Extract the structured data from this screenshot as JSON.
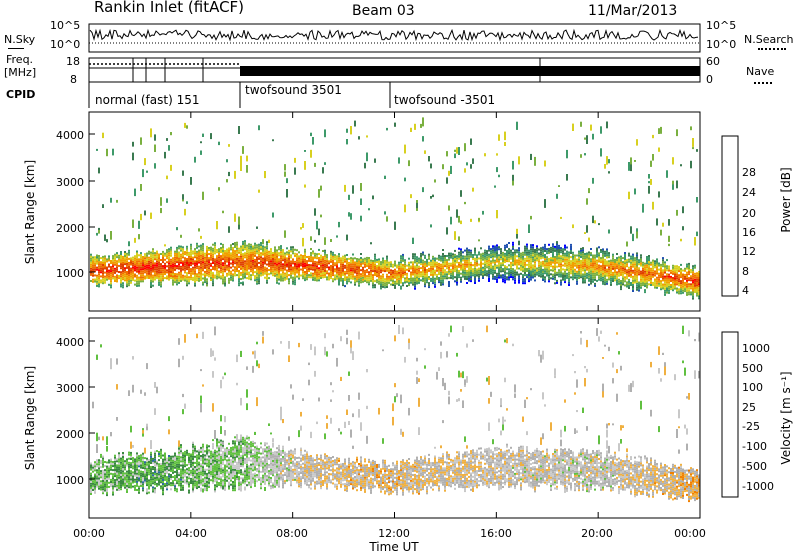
{
  "header": {
    "station": "Rankin Inlet (fitACF)",
    "beam": "Beam 03",
    "date": "11/Mar/2013"
  },
  "noise_panel": {
    "left_label": "N.Sky",
    "right_label": "N.Search",
    "left_ticks": [
      "10^5",
      "10^0"
    ],
    "right_ticks": [
      "10^5",
      "10^0"
    ]
  },
  "freq_panel": {
    "left_label_line1": "Freq.",
    "left_label_line2": "[MHz]",
    "right_label": "Nave",
    "left_ticks": [
      "18",
      "8"
    ],
    "right_ticks": [
      "60",
      "0"
    ]
  },
  "cpid_panel": {
    "label": "CPID",
    "modes": [
      "normal (fast) 151",
      "twofsound 3501",
      "twofsound -3501"
    ]
  },
  "x_axis": {
    "label": "Time UT",
    "ticks": [
      "00:00",
      "04:00",
      "08:00",
      "12:00",
      "16:00",
      "20:00",
      "00:00"
    ]
  },
  "power_panel": {
    "ylabel": "Slant Range [km]",
    "yticks": [
      "4000",
      "3000",
      "2000",
      "1000"
    ],
    "cbar_label": "Power [dB]",
    "cbar_ticks": [
      "28",
      "24",
      "20",
      "16",
      "12",
      "8",
      "4"
    ]
  },
  "velocity_panel": {
    "ylabel": "Slant Range [km]",
    "yticks": [
      "4000",
      "3000",
      "2000",
      "1000"
    ],
    "cbar_label": "Velocity [m s⁻¹]",
    "cbar_ticks": [
      "1000",
      "500",
      "100",
      "25",
      "-25",
      "-100",
      "-500",
      "-1000"
    ]
  },
  "colors": {
    "power_scale": [
      "#0000ff",
      "#2050b0",
      "#3a7a50",
      "#3e9a6a",
      "#7ab040",
      "#d8d020",
      "#f0a000",
      "#f07000",
      "#e04000",
      "#ff0000"
    ],
    "velocity_scale": [
      "#ff0000",
      "#e85000",
      "#f08000",
      "#f0b040",
      "#b0b0b0",
      "#c8c8c8",
      "#60c040",
      "#3a8a40",
      "#2c6aa0",
      "#1f3fbf"
    ]
  },
  "chart_data": [
    {
      "type": "heatmap",
      "title": "",
      "quantity": "Power [dB]",
      "xlabel": "Time UT",
      "ylabel": "Slant Range [km]",
      "xlim_hours": [
        0,
        24
      ],
      "ylim_km": [
        180,
        4600
      ],
      "color_range": [
        0,
        30
      ],
      "band_centers_km": [
        {
          "t_hours": 0,
          "center_km": 1050,
          "halfwidth_km": 300,
          "power_db": 27
        },
        {
          "t_hours": 3,
          "center_km": 1150,
          "halfwidth_km": 350,
          "power_db": 28
        },
        {
          "t_hours": 6,
          "center_km": 1250,
          "halfwidth_km": 400,
          "power_db": 26
        },
        {
          "t_hours": 9,
          "center_km": 1150,
          "halfwidth_km": 300,
          "power_db": 27
        },
        {
          "t_hours": 12,
          "center_km": 1000,
          "halfwidth_km": 300,
          "power_db": 24
        },
        {
          "t_hours": 16,
          "center_km": 1250,
          "halfwidth_km": 350,
          "power_db": 18
        },
        {
          "t_hours": 20,
          "center_km": 1150,
          "halfwidth_km": 350,
          "power_db": 22
        },
        {
          "t_hours": 24,
          "center_km": 800,
          "halfwidth_km": 300,
          "power_db": 27
        }
      ]
    },
    {
      "type": "heatmap",
      "title": "",
      "quantity": "Velocity [m s⁻¹]",
      "xlabel": "Time UT",
      "ylabel": "Slant Range [km]",
      "xlim_hours": [
        0,
        24
      ],
      "ylim_km": [
        180,
        4600
      ],
      "color_range": [
        -1000,
        1000
      ],
      "band_centers_km": [
        {
          "t_hours": 0,
          "center_km": 1100,
          "halfwidth_km": 350,
          "velocity_ms": 300
        },
        {
          "t_hours": 3,
          "center_km": 1200,
          "halfwidth_km": 400,
          "velocity_ms": 400
        },
        {
          "t_hours": 6,
          "center_km": 1400,
          "halfwidth_km": 500,
          "velocity_ms": 200
        },
        {
          "t_hours": 9,
          "center_km": 1200,
          "halfwidth_km": 300,
          "velocity_ms": -150
        },
        {
          "t_hours": 12,
          "center_km": 1050,
          "halfwidth_km": 300,
          "velocity_ms": -200
        },
        {
          "t_hours": 16,
          "center_km": 1300,
          "halfwidth_km": 400,
          "velocity_ms": -50
        },
        {
          "t_hours": 20,
          "center_km": 1200,
          "halfwidth_km": 400,
          "velocity_ms": 0
        },
        {
          "t_hours": 24,
          "center_km": 900,
          "halfwidth_km": 300,
          "velocity_ms": -300
        }
      ]
    }
  ]
}
